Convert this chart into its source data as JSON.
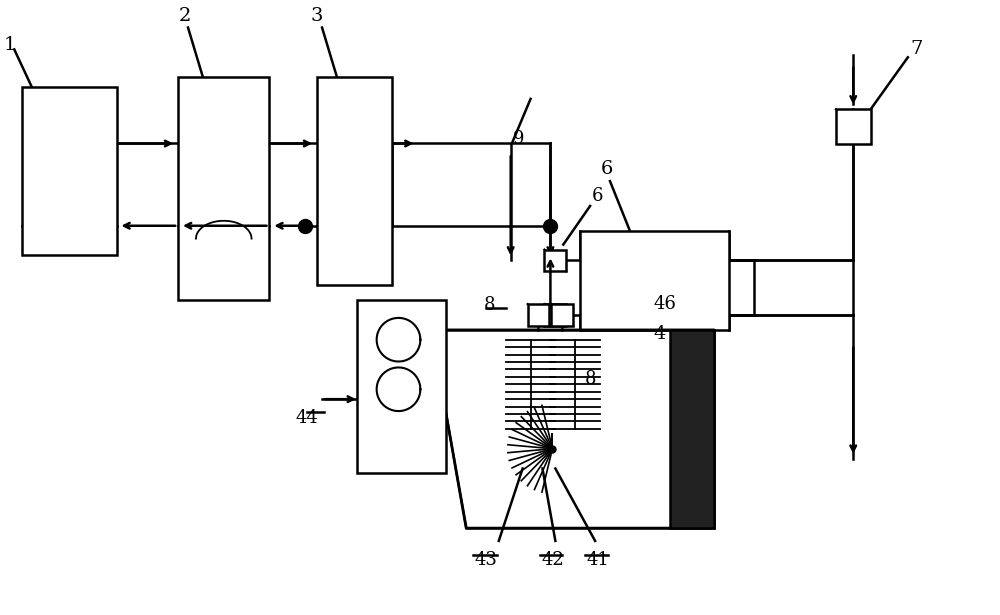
{
  "bg_color": "#ffffff",
  "line_color": "#000000",
  "fig_width": 10.0,
  "fig_height": 6.15
}
